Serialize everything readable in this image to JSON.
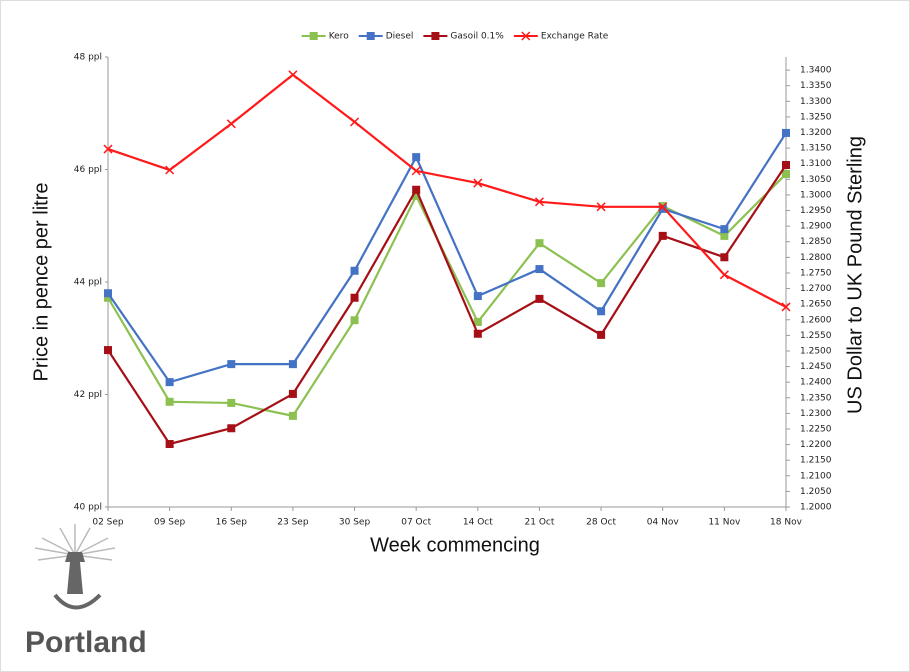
{
  "chart_data": {
    "type": "line",
    "x_label": "Week commencing",
    "y_label": "Price in pence per litre",
    "y2_label": "US Dollar to UK Pound Sterling",
    "categories": [
      "02 Sep",
      "09 Sep",
      "16 Sep",
      "23 Sep",
      "30 Sep",
      "07 Oct",
      "14 Oct",
      "21 Oct",
      "28 Oct",
      "04 Nov",
      "11 Nov",
      "18 Nov"
    ],
    "series": [
      {
        "name": "Kero",
        "color": "#8cc152",
        "marker": "square",
        "values": [
          43.72,
          41.87,
          41.85,
          41.62,
          43.32,
          45.53,
          43.29,
          44.69,
          43.98,
          45.35,
          44.82,
          45.92
        ]
      },
      {
        "name": "Diesel",
        "color": "#4472c4",
        "marker": "square",
        "values": [
          43.8,
          42.22,
          42.54,
          42.54,
          44.2,
          46.22,
          43.75,
          44.23,
          43.48,
          45.3,
          44.94,
          46.65
        ]
      },
      {
        "name": "Gasoil 0.1%",
        "color": "#a50f15",
        "marker": "square",
        "values": [
          42.79,
          41.12,
          41.4,
          42.01,
          43.72,
          45.64,
          43.08,
          43.7,
          43.06,
          44.82,
          44.44,
          46.08
        ]
      },
      {
        "name": "Exchange Rate",
        "color": "#ff1a1a",
        "marker": "x",
        "axis": "y2",
        "values": [
          1.3147,
          1.308,
          1.3228,
          1.3385,
          1.3234,
          1.3077,
          1.3038,
          1.2978,
          1.2962,
          1.2962,
          1.2744,
          1.2641
        ]
      }
    ],
    "ylim": [
      40,
      48
    ],
    "yticks": [
      {
        "value": 40,
        "label": "40 ppl"
      },
      {
        "value": 42,
        "label": "42 ppl"
      },
      {
        "value": 44,
        "label": "44 ppl"
      },
      {
        "value": 46,
        "label": "46 ppl"
      },
      {
        "value": 48,
        "label": "48 ppl"
      }
    ],
    "y2lim": [
      1.2,
      1.3442
    ],
    "y2ticks": [
      {
        "value": 1.2,
        "label": "1.2000"
      },
      {
        "value": 1.205,
        "label": "1.2050"
      },
      {
        "value": 1.21,
        "label": "1.2100"
      },
      {
        "value": 1.215,
        "label": "1.2150"
      },
      {
        "value": 1.22,
        "label": "1.2200"
      },
      {
        "value": 1.225,
        "label": "1.2250"
      },
      {
        "value": 1.23,
        "label": "1.2300"
      },
      {
        "value": 1.235,
        "label": "1.2350"
      },
      {
        "value": 1.24,
        "label": "1.2400"
      },
      {
        "value": 1.245,
        "label": "1.2450"
      },
      {
        "value": 1.25,
        "label": "1.2500"
      },
      {
        "value": 1.255,
        "label": "1.2550"
      },
      {
        "value": 1.26,
        "label": "1.2600"
      },
      {
        "value": 1.265,
        "label": "1.2650"
      },
      {
        "value": 1.27,
        "label": "1.2700"
      },
      {
        "value": 1.275,
        "label": "1.2750"
      },
      {
        "value": 1.28,
        "label": "1.2800"
      },
      {
        "value": 1.285,
        "label": "1.2850"
      },
      {
        "value": 1.29,
        "label": "1.2900"
      },
      {
        "value": 1.295,
        "label": "1.2950"
      },
      {
        "value": 1.3,
        "label": "1.3000"
      },
      {
        "value": 1.305,
        "label": "1.3050"
      },
      {
        "value": 1.31,
        "label": "1.3100"
      },
      {
        "value": 1.315,
        "label": "1.3150"
      },
      {
        "value": 1.32,
        "label": "1.3200"
      },
      {
        "value": 1.325,
        "label": "1.3250"
      },
      {
        "value": 1.33,
        "label": "1.3300"
      },
      {
        "value": 1.335,
        "label": "1.3350"
      },
      {
        "value": 1.34,
        "label": "1.3400"
      }
    ],
    "grid": false,
    "legend": "top"
  },
  "logo_text": "Portland"
}
